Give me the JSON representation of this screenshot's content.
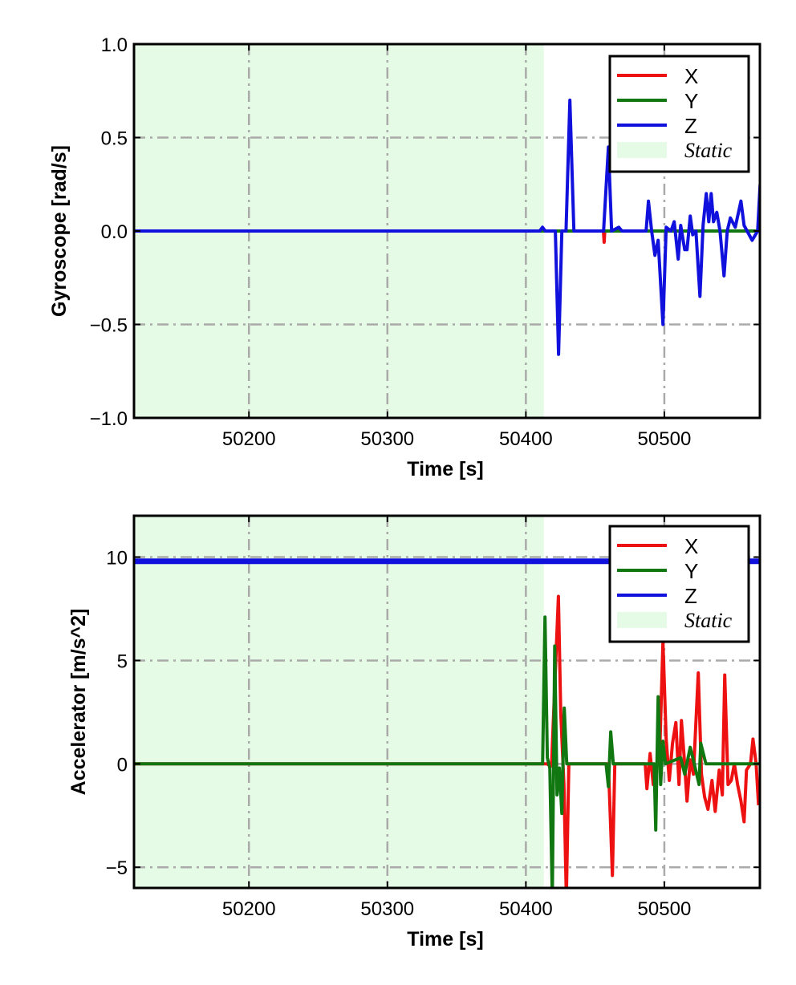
{
  "chart_data": [
    {
      "type": "line",
      "xlabel": "Time [s]",
      "ylabel": "Gyroscope [rad/s]",
      "xlim": [
        50117,
        50569
      ],
      "ylim": [
        -1.0,
        1.0
      ],
      "xticks": [
        50200,
        50300,
        50400,
        50500
      ],
      "xtick_labels": [
        "50200",
        "50300",
        "50400",
        "50500"
      ],
      "yticks": [
        -1.0,
        -0.5,
        0.0,
        0.5,
        1.0
      ],
      "ytick_labels": [
        "−1.0",
        "−0.5",
        "0.0",
        "0.5",
        "1.0"
      ],
      "grid": "dash-dot",
      "legend_position": "top-right",
      "static_region": {
        "label": "Static",
        "x": [
          50117,
          50413
        ],
        "color": "#e6fbe6"
      },
      "series": [
        {
          "name": "X",
          "color": "#ee1111",
          "points": [
            [
              50117,
              0
            ],
            [
              50456,
              0
            ],
            [
              50456.5,
              -0.06
            ],
            [
              50457,
              0
            ],
            [
              50569,
              0
            ]
          ]
        },
        {
          "name": "Y",
          "color": "#117711",
          "points": [
            [
              50117,
              0
            ],
            [
              50569,
              0
            ]
          ]
        },
        {
          "name": "Z",
          "color": "#1111dd",
          "points": [
            [
              50117,
              0
            ],
            [
              50410,
              0
            ],
            [
              50412,
              0.02
            ],
            [
              50414,
              0
            ],
            [
              50421.3,
              0
            ],
            [
              50423.6,
              -0.66
            ],
            [
              50426,
              0
            ],
            [
              50429,
              0
            ],
            [
              50431.8,
              0.7
            ],
            [
              50434.7,
              0
            ],
            [
              50456.1,
              0
            ],
            [
              50459.6,
              0.45
            ],
            [
              50461.9,
              0
            ],
            [
              50467.1,
              0.02
            ],
            [
              50469.4,
              0
            ],
            [
              50486.8,
              0
            ],
            [
              50488.5,
              0.16
            ],
            [
              50490.8,
              0
            ],
            [
              50493.2,
              -0.13
            ],
            [
              50495.5,
              -0.05
            ],
            [
              50499,
              -0.5
            ],
            [
              50501.3,
              0.02
            ],
            [
              50504.8,
              0
            ],
            [
              50507.1,
              0.05
            ],
            [
              50510,
              -0.15
            ],
            [
              50511.8,
              0.03
            ],
            [
              50514.7,
              -0.1
            ],
            [
              50516.4,
              -0.1
            ],
            [
              50518.7,
              0.08
            ],
            [
              50520.5,
              -0.02
            ],
            [
              50522.8,
              0
            ],
            [
              50525.7,
              -0.35
            ],
            [
              50528,
              0.03
            ],
            [
              50530.3,
              0.2
            ],
            [
              50532.1,
              0.05
            ],
            [
              50533.8,
              0.2
            ],
            [
              50535.5,
              0.05
            ],
            [
              50537.9,
              0.1
            ],
            [
              50540.2,
              0
            ],
            [
              50543.1,
              -0.24
            ],
            [
              50545.4,
              0
            ],
            [
              50547.7,
              0.07
            ],
            [
              50551.2,
              0.02
            ],
            [
              50555.3,
              0.16
            ],
            [
              50557.6,
              0.03
            ],
            [
              50563.4,
              -0.05
            ],
            [
              50567.4,
              0
            ],
            [
              50569.2,
              0.25
            ]
          ]
        }
      ]
    },
    {
      "type": "line",
      "xlabel": "Time [s]",
      "ylabel": "Accelerator [m/s^2]",
      "xlim": [
        50117,
        50569
      ],
      "ylim": [
        -6,
        12
      ],
      "xticks": [
        50200,
        50300,
        50400,
        50500
      ],
      "xtick_labels": [
        "50200",
        "50300",
        "50400",
        "50500"
      ],
      "yticks": [
        -5,
        0,
        5,
        10
      ],
      "ytick_labels": [
        "−5",
        "0",
        "5",
        "10"
      ],
      "grid": "dash-dot",
      "legend_position": "top-right",
      "static_region": {
        "label": "Static",
        "x": [
          50117,
          50413
        ],
        "color": "#e6fbe6"
      },
      "series": [
        {
          "name": "X",
          "color": "#ee1111",
          "points": [
            [
              50117,
              0
            ],
            [
              50415,
              0
            ],
            [
              50418.5,
              -0.1
            ],
            [
              50423.5,
              8.1
            ],
            [
              50425.2,
              2.5
            ],
            [
              50427.5,
              -1
            ],
            [
              50429.2,
              -6.5
            ],
            [
              50431,
              0
            ],
            [
              50459.6,
              0
            ],
            [
              50462.5,
              -5.4
            ],
            [
              50464.2,
              0
            ],
            [
              50486.2,
              0
            ],
            [
              50487.4,
              -1.2
            ],
            [
              50489.7,
              0.5
            ],
            [
              50492,
              -1
            ],
            [
              50496.7,
              0.6
            ],
            [
              50499,
              5.9
            ],
            [
              50501.3,
              1.2
            ],
            [
              50503.6,
              -0.8
            ],
            [
              50505.9,
              1
            ],
            [
              50508.3,
              2
            ],
            [
              50510.6,
              -1
            ],
            [
              50512.3,
              2.1
            ],
            [
              50514.1,
              0.5
            ],
            [
              50516.4,
              -1.8
            ],
            [
              50518.7,
              0.2
            ],
            [
              50521,
              -0.5
            ],
            [
              50524.5,
              4.4
            ],
            [
              50526.8,
              -0.5
            ],
            [
              50529.1,
              -1.6
            ],
            [
              50531.5,
              -2.2
            ],
            [
              50534.4,
              -0.8
            ],
            [
              50536.7,
              -2.3
            ],
            [
              50539.6,
              -0.3
            ],
            [
              50541.9,
              -1.5
            ],
            [
              50543.6,
              4.3
            ],
            [
              50546,
              -1
            ],
            [
              50548.3,
              -0.8
            ],
            [
              50550.6,
              0
            ],
            [
              50552.9,
              -1
            ],
            [
              50555.3,
              -1.8
            ],
            [
              50557.6,
              -2.8
            ],
            [
              50559.3,
              -0.3
            ],
            [
              50562.2,
              0
            ],
            [
              50564,
              1.2
            ],
            [
              50566.3,
              0
            ],
            [
              50568,
              -2
            ]
          ]
        },
        {
          "name": "Y",
          "color": "#117711",
          "points": [
            [
              50117,
              0
            ],
            [
              50412.1,
              0
            ],
            [
              50413.8,
              7.1
            ],
            [
              50415.5,
              0.3
            ],
            [
              50417.3,
              -0.2
            ],
            [
              50419.1,
              -6.5
            ],
            [
              50420.8,
              5.7
            ],
            [
              50422.5,
              -1.5
            ],
            [
              50424.2,
              -0.2
            ],
            [
              50426,
              -2.4
            ],
            [
              50427.7,
              2.7
            ],
            [
              50429.5,
              0
            ],
            [
              50457.9,
              0
            ],
            [
              50459.6,
              -1.1
            ],
            [
              50461.3,
              1.55
            ],
            [
              50463.1,
              0
            ],
            [
              50492.6,
              0
            ],
            [
              50493.8,
              -3.2
            ],
            [
              50495.5,
              3.25
            ],
            [
              50497.3,
              -1
            ],
            [
              50499,
              1.1
            ],
            [
              50500.8,
              0
            ],
            [
              50511.8,
              0.3
            ],
            [
              50514.7,
              -0.5
            ],
            [
              50518.7,
              0.8
            ],
            [
              50521.6,
              0
            ],
            [
              50525.1,
              -1
            ],
            [
              50526.3,
              1.0
            ],
            [
              50530,
              0
            ],
            [
              50569,
              0
            ]
          ]
        },
        {
          "name": "Z",
          "color": "#1111dd",
          "points": [
            [
              50117,
              9.8
            ],
            [
              50569,
              9.8
            ]
          ]
        }
      ]
    }
  ],
  "legend": {
    "items": [
      "X",
      "Y",
      "Z"
    ],
    "static_label": "Static"
  }
}
